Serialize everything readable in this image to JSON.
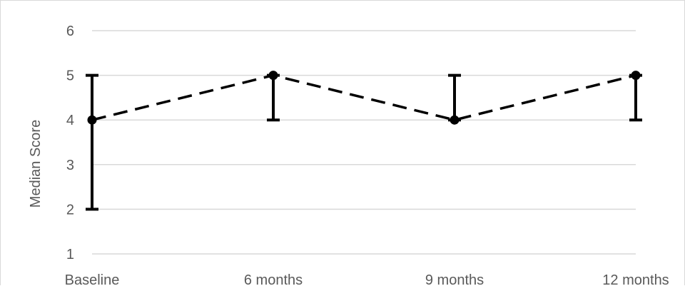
{
  "chart_data": {
    "type": "line",
    "title": "",
    "xlabel": "",
    "ylabel": "Median Score",
    "categories": [
      "Baseline",
      "6 months",
      "9 months",
      "12 months"
    ],
    "yticks": [
      "1",
      "2",
      "3",
      "4",
      "5",
      "6"
    ],
    "ylim": [
      1,
      6
    ],
    "grid": true,
    "legend": "none",
    "series": [
      {
        "values": [
          4,
          5,
          4,
          5
        ],
        "error_low": [
          2,
          4,
          4,
          4
        ],
        "error_high": [
          5,
          5,
          5,
          5
        ],
        "line_style": "dashed",
        "marker": "circle",
        "color": "#000000"
      }
    ],
    "gridline_color": "#d9d9d9",
    "text_color": "#595959"
  }
}
